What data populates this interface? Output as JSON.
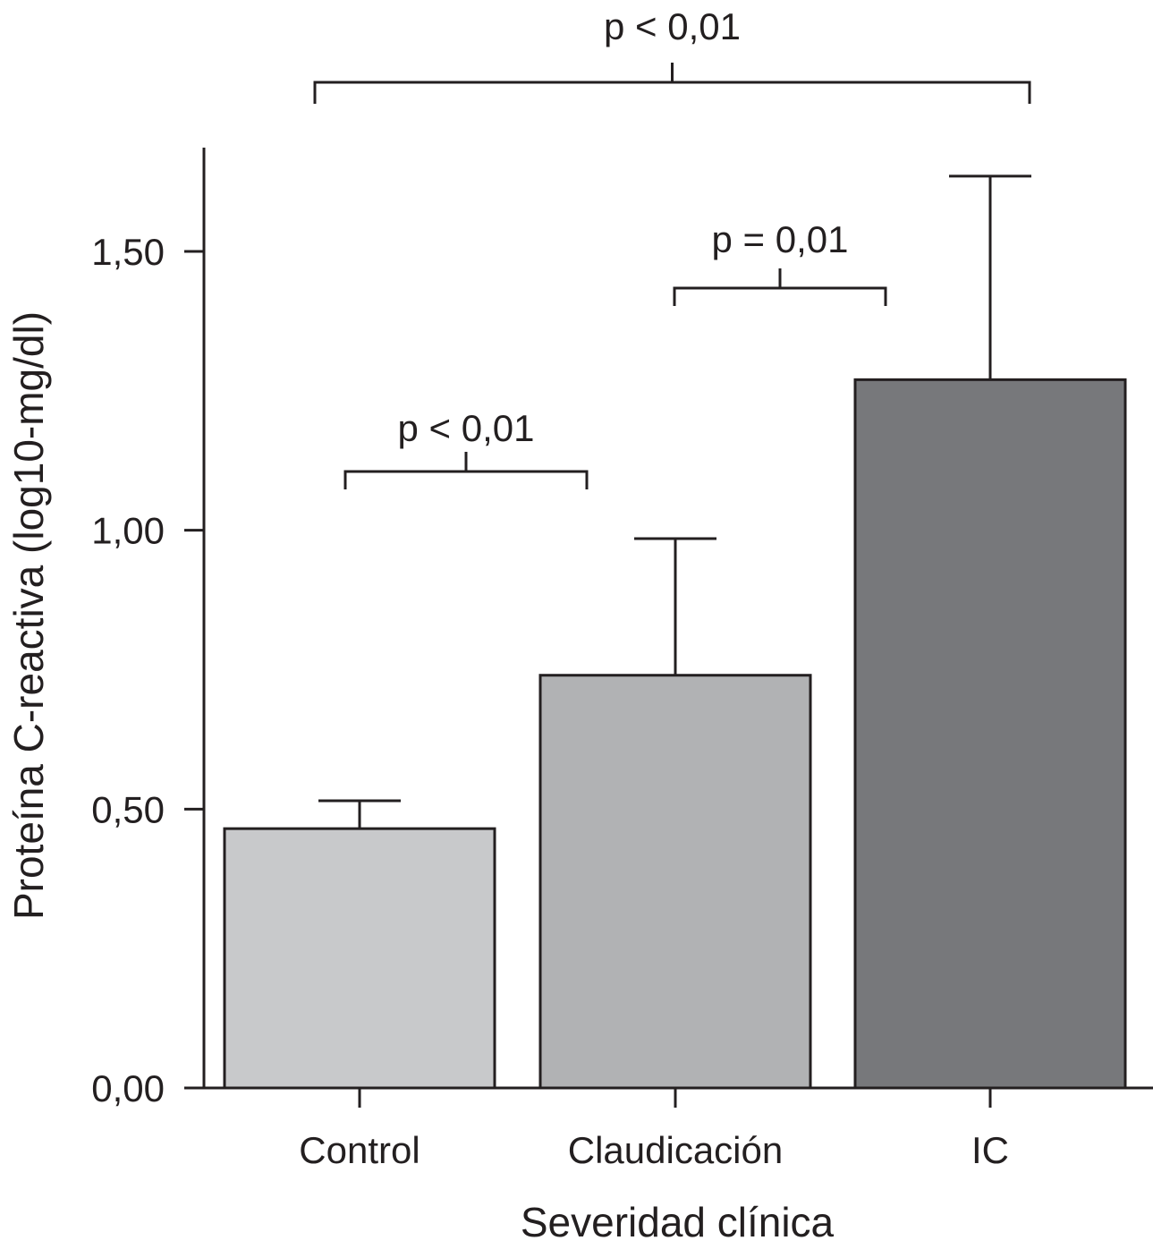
{
  "chart_data": {
    "type": "bar",
    "xlabel": "Severidad clínica",
    "ylabel": "Proteína C-reactiva (log10-mg/dl)",
    "ylim": [
      0,
      1.68
    ],
    "yticks": [
      {
        "value": 0.0,
        "label": "0,00"
      },
      {
        "value": 0.5,
        "label": "0,50"
      },
      {
        "value": 1.0,
        "label": "1,00"
      },
      {
        "value": 1.5,
        "label": "1,50"
      }
    ],
    "categories": [
      "Control",
      "Claudicación",
      "IC"
    ],
    "values": [
      0.465,
      0.74,
      1.27
    ],
    "error_upper": [
      0.515,
      0.985,
      1.635
    ],
    "bar_colors": [
      "#c8c9cb",
      "#b1b2b4",
      "#77787b"
    ],
    "significance": [
      {
        "from": 0,
        "to": 1,
        "label": "p < 0,01",
        "level": 1.1
      },
      {
        "from": 1,
        "to": 2,
        "label": "p = 0,01",
        "level": 1.43
      },
      {
        "from": 0,
        "to": 2,
        "label": "p < 0,01",
        "level": 2.0
      }
    ],
    "grid": false
  }
}
